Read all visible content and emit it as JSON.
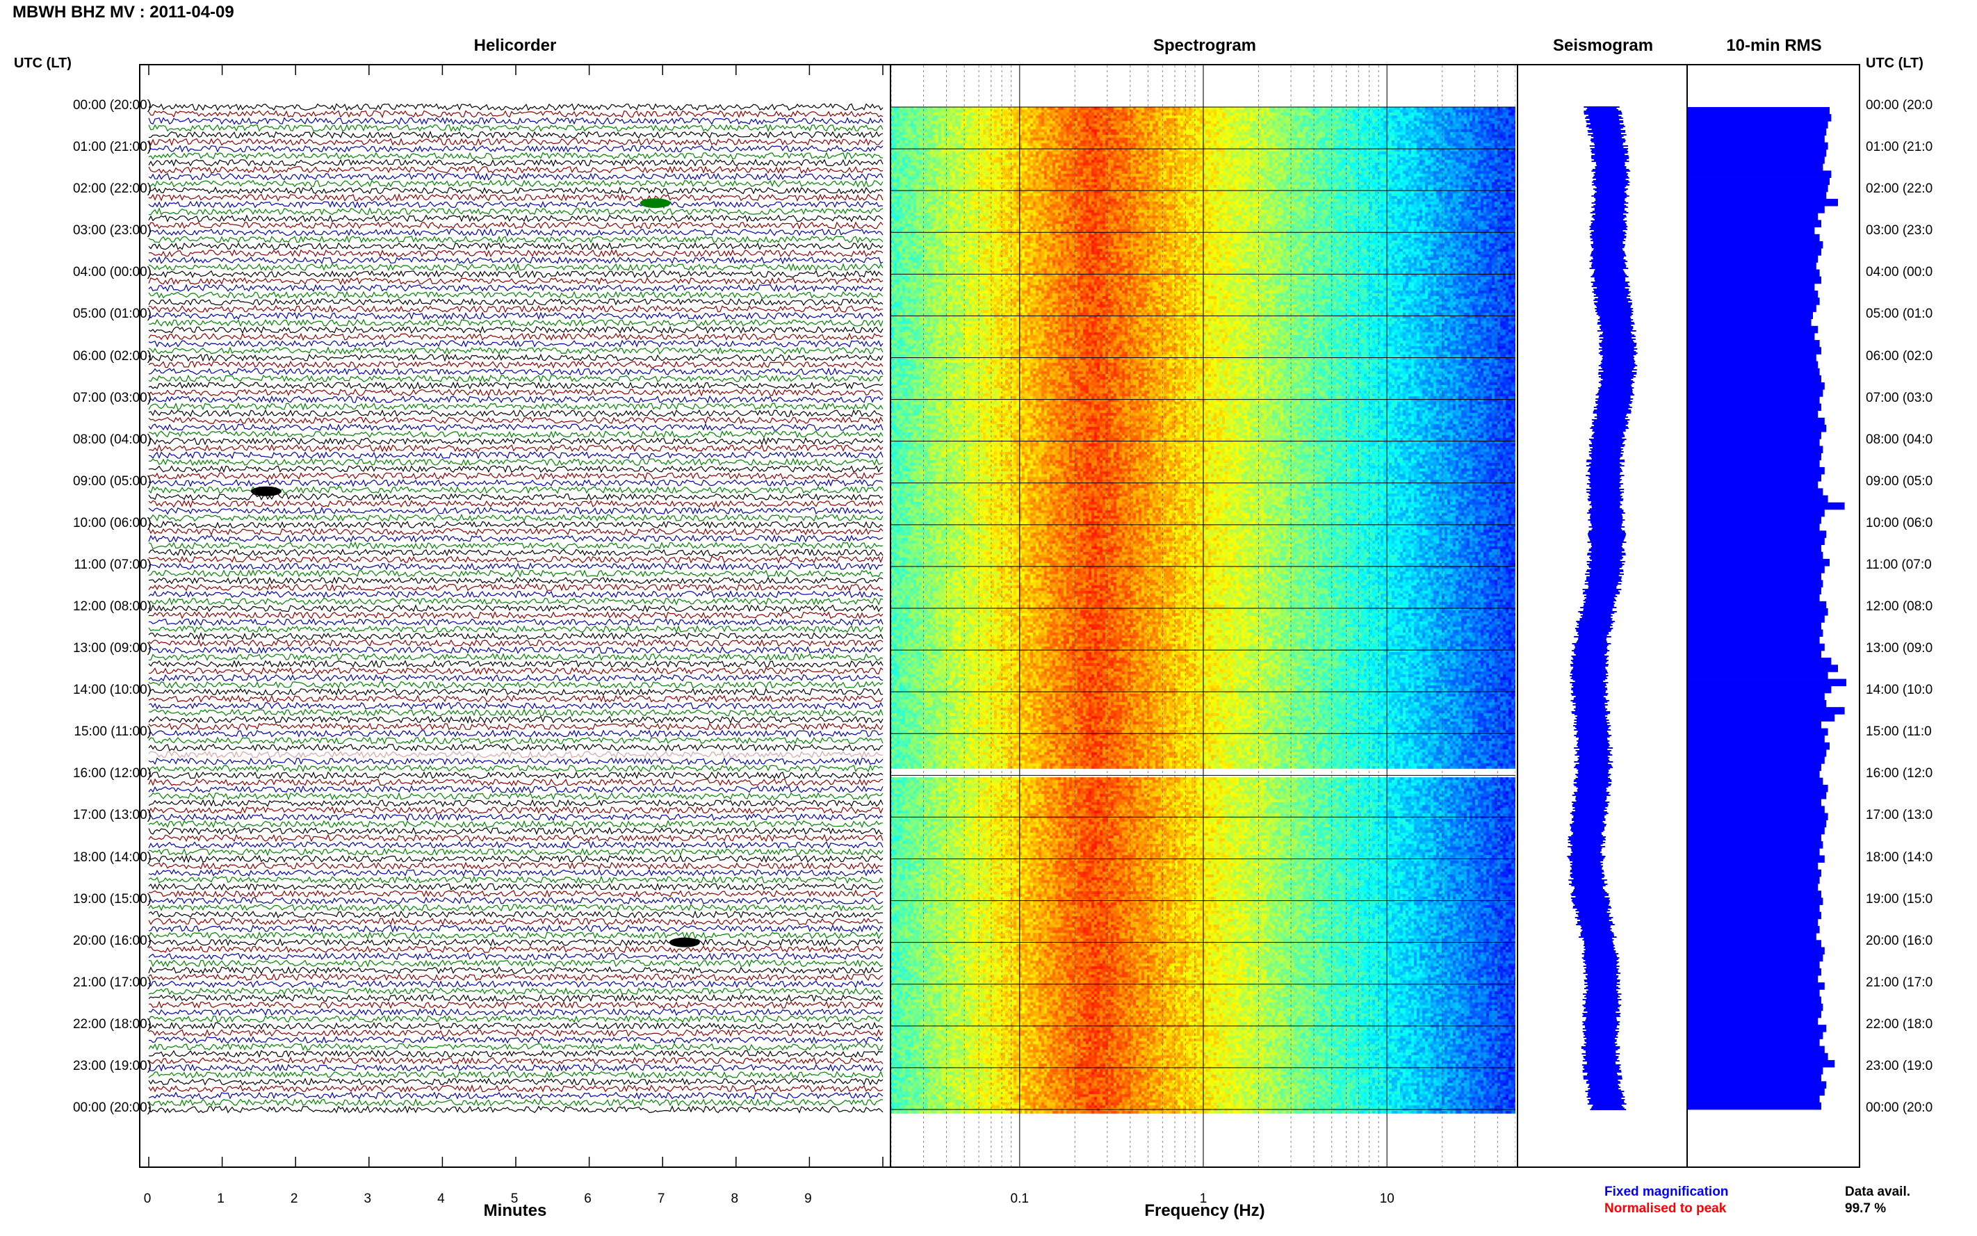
{
  "title": "MBWH BHZ MV : 2011-04-09",
  "panels": {
    "helicorder": "Helicorder",
    "spectrogram": "Spectrogram",
    "seismogram": "Seismogram",
    "rms": "10-min RMS"
  },
  "utc_label": "UTC (LT)",
  "time_labels": [
    "00:00 (20:00)",
    "01:00 (21:00)",
    "02:00 (22:00)",
    "03:00 (23:00)",
    "04:00 (00:00)",
    "05:00 (01:00)",
    "06:00 (02:00)",
    "07:00 (03:00)",
    "08:00 (04:00)",
    "09:00 (05:00)",
    "10:00 (06:00)",
    "11:00 (07:00)",
    "12:00 (08:00)",
    "13:00 (09:00)",
    "14:00 (10:00)",
    "15:00 (11:00)",
    "16:00 (12:00)",
    "17:00 (13:00)",
    "18:00 (14:00)",
    "19:00 (15:00)",
    "20:00 (16:00)",
    "21:00 (17:00)",
    "22:00 (18:00)",
    "23:00 (19:00)",
    "00:00 (20:00)"
  ],
  "time_labels_right": [
    "00:00 (20:0",
    "01:00 (21:0",
    "02:00 (22:0",
    "03:00 (23:0",
    "04:00 (00:0",
    "05:00 (01:0",
    "06:00 (02:0",
    "07:00 (03:0",
    "08:00 (04:0",
    "09:00 (05:0",
    "10:00 (06:0",
    "11:00 (07:0",
    "12:00 (08:0",
    "13:00 (09:0",
    "14:00 (10:0",
    "15:00 (11:0",
    "16:00 (12:0",
    "17:00 (13:0",
    "18:00 (14:0",
    "19:00 (15:0",
    "20:00 (16:0",
    "21:00 (17:0",
    "22:00 (18:0",
    "23:00 (19:0",
    "00:00 (20:0"
  ],
  "axes": {
    "minutes_label": "Minutes",
    "minutes_ticks": [
      "0",
      "1",
      "2",
      "3",
      "4",
      "5",
      "6",
      "7",
      "8",
      "9"
    ],
    "frequency_label": "Frequency (Hz)",
    "frequency_ticks": [
      "0.1",
      "1",
      "10"
    ]
  },
  "legend": {
    "fixed": "Fixed magnification",
    "normalised": "Normalised to peak",
    "fixed_color": "#0000ff",
    "normalised_color": "#ff0000"
  },
  "data_avail": {
    "label": "Data avail.",
    "value": "99.7 %"
  },
  "colors": {
    "trace_cycle": [
      "#000000",
      "#8b0000",
      "#0000aa",
      "#008000"
    ],
    "rms_fill": "#0000ff",
    "seismogram": "#0000ff"
  },
  "chart_data": [
    {
      "type": "line",
      "title": "Helicorder",
      "xlabel": "Minutes",
      "xlim": [
        0,
        10
      ],
      "hours": 24,
      "lines_per_hour": 6,
      "gap_hour": 15.5,
      "events": [
        {
          "hour": 2.3,
          "minute": 6.9,
          "color": "#008000"
        },
        {
          "hour": 9.2,
          "minute": 1.6,
          "color": "#000000"
        },
        {
          "hour": 20.0,
          "minute": 7.3,
          "color": "#000000"
        }
      ]
    },
    {
      "type": "heatmap",
      "title": "Spectrogram",
      "xlabel": "Frequency (Hz)",
      "xscale": "log",
      "xlim": [
        0.02,
        50
      ],
      "peak_frequency_hz": 0.25,
      "gap_hours": [
        15.8,
        16.0
      ]
    },
    {
      "type": "line",
      "title": "Seismogram",
      "hours": 24
    },
    {
      "type": "bar",
      "title": "10-min RMS",
      "orientation": "horizontal",
      "bins_per_hour": 6,
      "values": [
        0.85,
        0.86,
        0.84,
        0.83,
        0.82,
        0.84,
        0.83,
        0.82,
        0.81,
        0.86,
        0.85,
        0.84,
        0.83,
        0.9,
        0.82,
        0.78,
        0.8,
        0.76,
        0.79,
        0.81,
        0.8,
        0.78,
        0.77,
        0.79,
        0.8,
        0.76,
        0.78,
        0.79,
        0.77,
        0.75,
        0.74,
        0.78,
        0.76,
        0.79,
        0.8,
        0.77,
        0.78,
        0.79,
        0.8,
        0.82,
        0.81,
        0.79,
        0.8,
        0.78,
        0.82,
        0.83,
        0.8,
        0.79,
        0.81,
        0.8,
        0.79,
        0.82,
        0.8,
        0.78,
        0.81,
        0.84,
        0.94,
        0.82,
        0.8,
        0.79,
        0.83,
        0.82,
        0.8,
        0.81,
        0.85,
        0.82,
        0.8,
        0.81,
        0.8,
        0.79,
        0.83,
        0.84,
        0.82,
        0.8,
        0.81,
        0.79,
        0.82,
        0.8,
        0.86,
        0.9,
        0.84,
        0.95,
        0.86,
        0.82,
        0.83,
        0.94,
        0.88,
        0.8,
        0.84,
        0.82,
        0.85,
        0.83,
        0.82,
        0.8,
        0.79,
        0.81,
        0.84,
        0.83,
        0.8,
        0.82,
        0.84,
        0.83,
        0.82,
        0.8,
        0.81,
        0.79,
        0.82,
        0.78,
        0.8,
        0.79,
        0.78,
        0.8,
        0.81,
        0.79,
        0.8,
        0.78,
        0.79,
        0.77,
        0.8,
        0.82,
        0.81,
        0.79,
        0.8,
        0.78,
        0.82,
        0.79,
        0.8,
        0.81,
        0.8,
        0.78,
        0.83,
        0.81,
        0.79,
        0.82,
        0.84,
        0.88,
        0.81,
        0.8,
        0.83,
        0.82,
        0.79,
        0.8
      ]
    }
  ]
}
